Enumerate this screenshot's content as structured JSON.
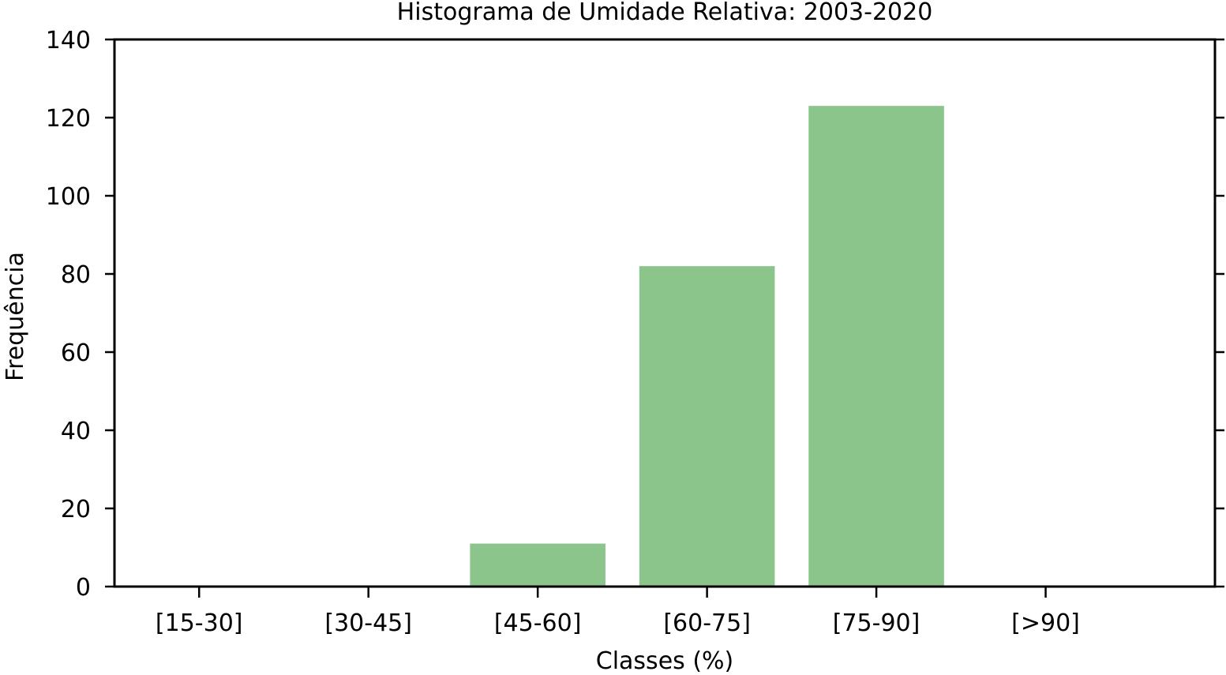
{
  "chart_data": {
    "type": "bar",
    "title": "Histograma de Umidade Relativa: 2003-2020",
    "xlabel": "Classes (%)",
    "ylabel": "Frequência",
    "categories": [
      "[15-30]",
      "[30-45]",
      "[45-60]",
      "[60-75]",
      "[75-90]",
      "[>90]"
    ],
    "values": [
      0,
      0,
      11,
      82,
      123,
      0
    ],
    "ylim": [
      0,
      140
    ],
    "yticks": [
      0,
      20,
      40,
      60,
      80,
      100,
      120,
      140
    ],
    "bar_color": "#8cc58c",
    "grid": false,
    "legend": "none"
  }
}
